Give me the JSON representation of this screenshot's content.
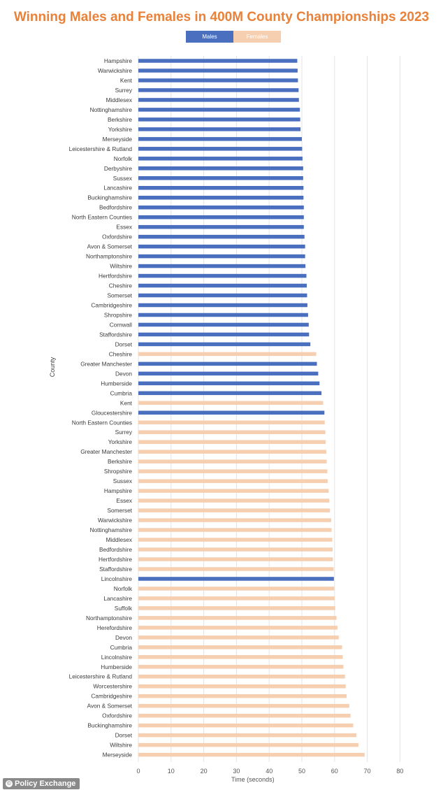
{
  "colors": {
    "males": "#4a6fbf",
    "females": "#f6cfb1",
    "title": "#e8823a",
    "grid": "#e4e4e4",
    "text": "#3a3a3a"
  },
  "credit": {
    "icon": "copyright-icon",
    "text": "Policy Exchange"
  },
  "chart_data": {
    "type": "bar",
    "orientation": "horizontal",
    "title": "Winning Males and Females in 400M County Championships 2023",
    "ylabel": "County",
    "xlabel": "Time (seconds)",
    "xlim": [
      0,
      80
    ],
    "xticks": [
      0,
      10,
      20,
      30,
      40,
      50,
      60,
      70,
      80
    ],
    "grid": true,
    "legend": {
      "position": "top",
      "entries": [
        "Males",
        "Females"
      ]
    },
    "bars": [
      {
        "county": "Hampshire",
        "series": "Males",
        "value": 48.6
      },
      {
        "county": "Warwickshire",
        "series": "Males",
        "value": 48.7
      },
      {
        "county": "Kent",
        "series": "Males",
        "value": 48.8
      },
      {
        "county": "Surrey",
        "series": "Males",
        "value": 49.0
      },
      {
        "county": "Middlesex",
        "series": "Males",
        "value": 49.1
      },
      {
        "county": "Nottinghamshire",
        "series": "Males",
        "value": 49.4
      },
      {
        "county": "Berkshire",
        "series": "Males",
        "value": 49.5
      },
      {
        "county": "Yorkshire",
        "series": "Males",
        "value": 49.6
      },
      {
        "county": "Merseyside",
        "series": "Males",
        "value": 50.0
      },
      {
        "county": "Leicestershire & Rutland",
        "series": "Males",
        "value": 50.1
      },
      {
        "county": "Norfolk",
        "series": "Males",
        "value": 50.2
      },
      {
        "county": "Derbyshire",
        "series": "Males",
        "value": 50.4
      },
      {
        "county": "Sussex",
        "series": "Males",
        "value": 50.4
      },
      {
        "county": "Lancashire",
        "series": "Males",
        "value": 50.5
      },
      {
        "county": "Buckinghamshire",
        "series": "Males",
        "value": 50.5
      },
      {
        "county": "Bedfordshire",
        "series": "Males",
        "value": 50.6
      },
      {
        "county": "North Eastern Counties",
        "series": "Males",
        "value": 50.6
      },
      {
        "county": "Essex",
        "series": "Males",
        "value": 50.6
      },
      {
        "county": "Oxfordshire",
        "series": "Males",
        "value": 50.8
      },
      {
        "county": "Avon & Somerset",
        "series": "Males",
        "value": 51.0
      },
      {
        "county": "Northamptonshire",
        "series": "Males",
        "value": 51.0
      },
      {
        "county": "Wiltshire",
        "series": "Males",
        "value": 51.1
      },
      {
        "county": "Hertfordshire",
        "series": "Males",
        "value": 51.4
      },
      {
        "county": "Cheshire",
        "series": "Males",
        "value": 51.5
      },
      {
        "county": "Somerset",
        "series": "Males",
        "value": 51.6
      },
      {
        "county": "Cambridgeshire",
        "series": "Males",
        "value": 51.7
      },
      {
        "county": "Shropshire",
        "series": "Males",
        "value": 51.9
      },
      {
        "county": "Cornwall",
        "series": "Males",
        "value": 52.1
      },
      {
        "county": "Staffordshire",
        "series": "Males",
        "value": 52.2
      },
      {
        "county": "Dorset",
        "series": "Males",
        "value": 52.6
      },
      {
        "county": "Cheshire",
        "series": "Females",
        "value": 54.4
      },
      {
        "county": "Greater Manchester",
        "series": "Males",
        "value": 54.6
      },
      {
        "county": "Devon",
        "series": "Males",
        "value": 55.0
      },
      {
        "county": "Humberside",
        "series": "Males",
        "value": 55.4
      },
      {
        "county": "Cumbria",
        "series": "Males",
        "value": 56.0
      },
      {
        "county": "Kent",
        "series": "Females",
        "value": 56.5
      },
      {
        "county": "Gloucestershire",
        "series": "Males",
        "value": 56.9
      },
      {
        "county": "North Eastern Counties",
        "series": "Females",
        "value": 57.0
      },
      {
        "county": "Surrey",
        "series": "Females",
        "value": 57.2
      },
      {
        "county": "Yorkshire",
        "series": "Females",
        "value": 57.3
      },
      {
        "county": "Greater Manchester",
        "series": "Females",
        "value": 57.5
      },
      {
        "county": "Berkshire",
        "series": "Females",
        "value": 57.6
      },
      {
        "county": "Shropshire",
        "series": "Females",
        "value": 57.8
      },
      {
        "county": "Sussex",
        "series": "Females",
        "value": 57.9
      },
      {
        "county": "Hampshire",
        "series": "Females",
        "value": 58.2
      },
      {
        "county": "Essex",
        "series": "Females",
        "value": 58.4
      },
      {
        "county": "Somerset",
        "series": "Females",
        "value": 58.6
      },
      {
        "county": "Warwickshire",
        "series": "Females",
        "value": 59.0
      },
      {
        "county": "Nottinghamshire",
        "series": "Females",
        "value": 59.1
      },
      {
        "county": "Middlesex",
        "series": "Females",
        "value": 59.3
      },
      {
        "county": "Bedfordshire",
        "series": "Females",
        "value": 59.4
      },
      {
        "county": "Hertfordshire",
        "series": "Females",
        "value": 59.5
      },
      {
        "county": "Staffordshire",
        "series": "Females",
        "value": 59.7
      },
      {
        "county": "Lincolnshire",
        "series": "Males",
        "value": 59.8
      },
      {
        "county": "Norfolk",
        "series": "Females",
        "value": 59.9
      },
      {
        "county": "Lancashire",
        "series": "Females",
        "value": 60.0
      },
      {
        "county": "Suffolk",
        "series": "Females",
        "value": 60.2
      },
      {
        "county": "Northamptonshire",
        "series": "Females",
        "value": 60.6
      },
      {
        "county": "Herefordshire",
        "series": "Females",
        "value": 60.9
      },
      {
        "county": "Devon",
        "series": "Females",
        "value": 61.3
      },
      {
        "county": "Cumbria",
        "series": "Females",
        "value": 62.3
      },
      {
        "county": "Lincolnshire",
        "series": "Females",
        "value": 62.5
      },
      {
        "county": "Humberside",
        "series": "Females",
        "value": 62.7
      },
      {
        "county": "Leicestershire & Rutland",
        "series": "Females",
        "value": 63.2
      },
      {
        "county": "Worcestershire",
        "series": "Females",
        "value": 63.4
      },
      {
        "county": "Cambridgeshire",
        "series": "Females",
        "value": 63.7
      },
      {
        "county": "Avon & Somerset",
        "series": "Females",
        "value": 64.5
      },
      {
        "county": "Oxfordshire",
        "series": "Females",
        "value": 64.9
      },
      {
        "county": "Buckinghamshire",
        "series": "Females",
        "value": 65.7
      },
      {
        "county": "Dorset",
        "series": "Females",
        "value": 66.7
      },
      {
        "county": "Wiltshire",
        "series": "Females",
        "value": 67.3
      },
      {
        "county": "Merseyside",
        "series": "Females",
        "value": 69.2
      }
    ]
  }
}
